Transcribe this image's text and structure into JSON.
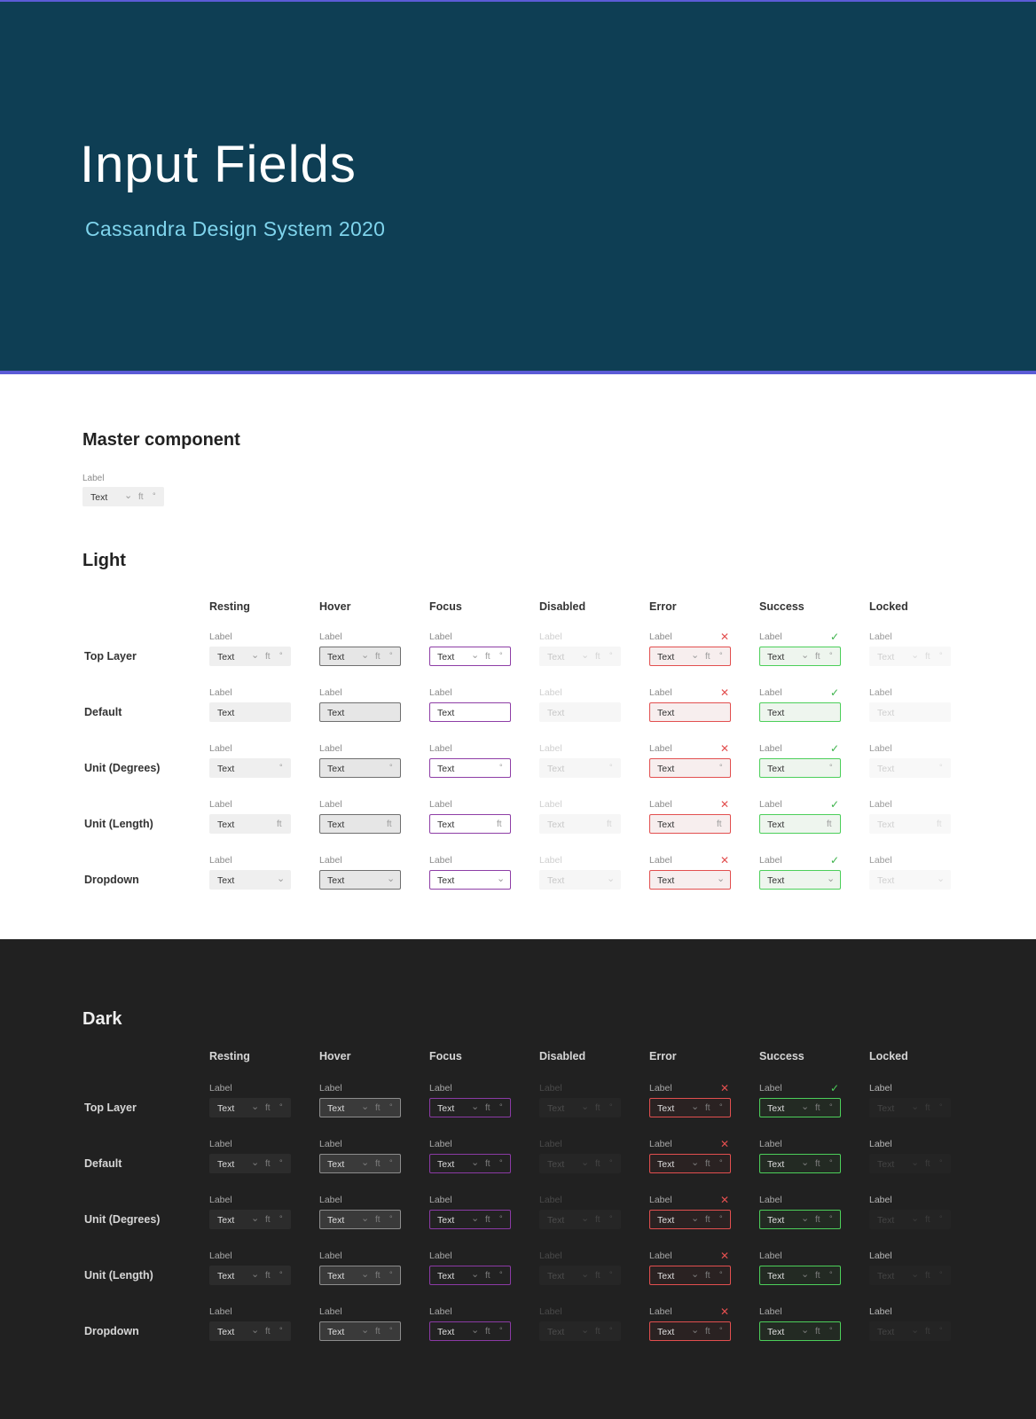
{
  "hero": {
    "title": "Input Fields",
    "subtitle": "Cassandra Design System 2020"
  },
  "master": {
    "title": "Master component",
    "label": "Label",
    "value": "Text",
    "unit": "ft",
    "degree": "°",
    "chevron": "⌄"
  },
  "light": {
    "title": "Light"
  },
  "dark": {
    "title": "Dark"
  },
  "columns": [
    "Resting",
    "Hover",
    "Focus",
    "Disabled",
    "Error",
    "Success",
    "Locked"
  ],
  "column_states": [
    "resting",
    "hover",
    "focus",
    "disabled",
    "error",
    "success",
    "locked"
  ],
  "rows": [
    "Top Layer",
    "Default",
    "Unit (Degrees)",
    "Unit (Length)",
    "Dropdown"
  ],
  "light_row_kinds": [
    "full",
    "plain",
    "degree",
    "length",
    "dropdown"
  ],
  "dark_row_kinds": [
    "full",
    "full",
    "full",
    "full",
    "full"
  ],
  "field": {
    "label": "Label",
    "value": "Text",
    "unit": "ft",
    "degree": "°",
    "chevron": "⌄"
  },
  "marks": {
    "error": "✕",
    "success": "✓"
  },
  "dark_mark_columns": {
    "error": [
      true,
      true,
      true,
      true,
      true
    ],
    "success": [
      true,
      false,
      false,
      false,
      false
    ]
  },
  "colors": {
    "hero_bg": "#0e3e54",
    "accent_purple": "#5b5bd6",
    "subtitle": "#7fd4ec",
    "focus": "#8e3ea6",
    "error": "#e24f4f",
    "success": "#4ccf5a",
    "dark_bg": "#212121"
  }
}
